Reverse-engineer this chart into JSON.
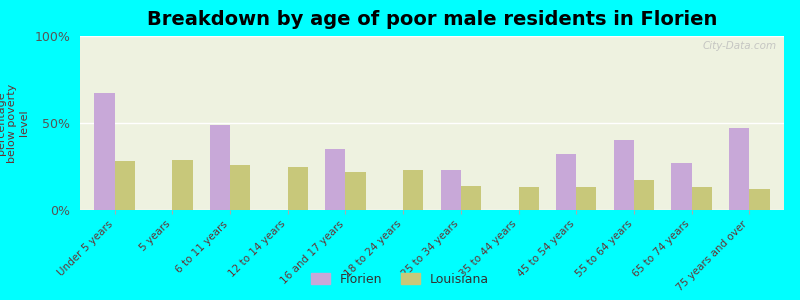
{
  "title": "Breakdown by age of poor male residents in Florien",
  "ylabel": "percentage\nbelow poverty\nlevel",
  "categories": [
    "Under 5 years",
    "5 years",
    "6 to 11 years",
    "12 to 14 years",
    "16 and 17 years",
    "18 to 24 years",
    "25 to 34 years",
    "35 to 44 years",
    "45 to 54 years",
    "55 to 64 years",
    "65 to 74 years",
    "75 years and over"
  ],
  "florien_values": [
    67,
    0,
    49,
    0,
    35,
    0,
    23,
    0,
    32,
    40,
    27,
    47
  ],
  "louisiana_values": [
    28,
    29,
    26,
    25,
    22,
    23,
    14,
    13,
    13,
    17,
    13,
    12
  ],
  "florien_color": "#c8a8d8",
  "louisiana_color": "#c8c87a",
  "background_color": "#00ffff",
  "plot_bg_color": "#eef2e0",
  "ylim": [
    0,
    100
  ],
  "yticks": [
    0,
    50,
    100
  ],
  "ytick_labels": [
    "0%",
    "50%",
    "100%"
  ],
  "bar_width": 0.35,
  "title_fontsize": 14,
  "legend_labels": [
    "Florien",
    "Louisiana"
  ],
  "watermark": "City-Data.com"
}
